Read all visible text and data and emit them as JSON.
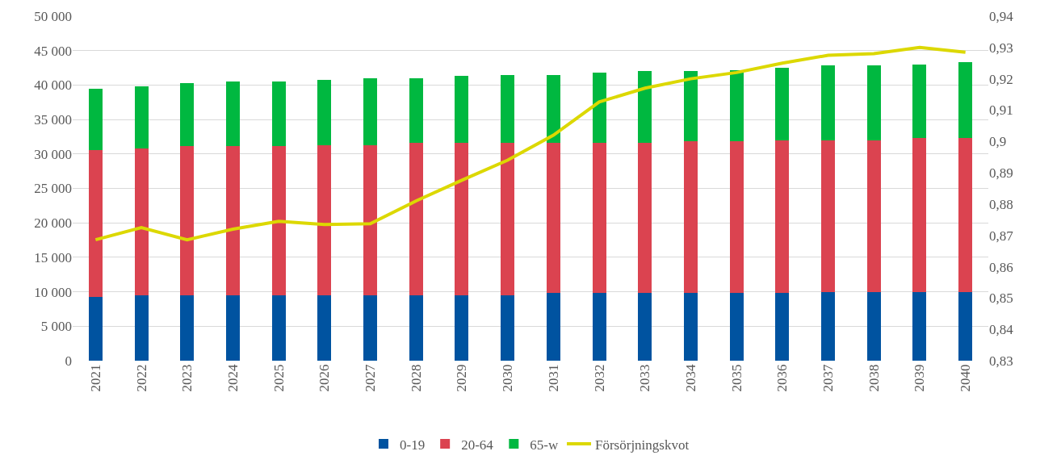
{
  "chart_data": {
    "type": "bar",
    "stacked": true,
    "categories": [
      "2021",
      "2022",
      "2023",
      "2024",
      "2025",
      "2026",
      "2027",
      "2028",
      "2029",
      "2030",
      "2031",
      "2032",
      "2033",
      "2034",
      "2035",
      "2036",
      "2037",
      "2038",
      "2039",
      "2040"
    ],
    "series": [
      {
        "name": "0-19",
        "color": "#0053a0",
        "values": [
          9200,
          9500,
          9500,
          9500,
          9500,
          9500,
          9500,
          9500,
          9500,
          9500,
          9800,
          9800,
          9800,
          9800,
          9800,
          9800,
          10000,
          10000,
          10000,
          10000
        ]
      },
      {
        "name": "20-64",
        "color": "#db4350",
        "values": [
          21400,
          21300,
          21600,
          21600,
          21600,
          21800,
          21800,
          22100,
          22100,
          22100,
          21800,
          21800,
          21800,
          22000,
          22000,
          22200,
          22000,
          22000,
          22300,
          22300
        ]
      },
      {
        "name": "65-w",
        "color": "#00b840",
        "values": [
          8900,
          9000,
          9200,
          9400,
          9400,
          9500,
          9700,
          9400,
          9700,
          9900,
          9900,
          10200,
          10400,
          10200,
          10400,
          10500,
          10800,
          10800,
          10700,
          11000
        ]
      },
      {
        "name": "Försörjningskvot",
        "type": "line",
        "axis": "y2",
        "color": "#dcd800",
        "values": [
          0.8686,
          0.8725,
          0.8686,
          0.872,
          0.8745,
          0.8735,
          0.8737,
          0.881,
          0.8876,
          0.894,
          0.902,
          0.9126,
          0.917,
          0.92,
          0.922,
          0.925,
          0.9275,
          0.928,
          0.93,
          0.9285
        ]
      }
    ],
    "ylim": [
      0,
      50000
    ],
    "yticks": [
      0,
      {
        "value": 5000,
        "label": "5 000"
      },
      {
        "value": 10000,
        "label": "10 000"
      },
      {
        "value": 15000,
        "label": "15 000"
      },
      {
        "value": 20000,
        "label": "20 000"
      },
      {
        "value": 25000,
        "label": "25 000"
      },
      {
        "value": 30000,
        "label": "30 000"
      },
      {
        "value": 35000,
        "label": "35 000"
      },
      {
        "value": 40000,
        "label": "40 000"
      },
      {
        "value": 45000,
        "label": "45 000"
      },
      {
        "value": 50000,
        "label": "50 000"
      }
    ],
    "y2lim": [
      0.83,
      0.94
    ],
    "y2ticks": [
      {
        "value": 0.83,
        "label": "0,83"
      },
      {
        "value": 0.84,
        "label": "0,84"
      },
      {
        "value": 0.85,
        "label": "0,85"
      },
      {
        "value": 0.86,
        "label": "0,86"
      },
      {
        "value": 0.87,
        "label": "0,87"
      },
      {
        "value": 0.88,
        "label": "0,88"
      },
      {
        "value": 0.89,
        "label": "0,89"
      },
      {
        "value": 0.9,
        "label": "0,9"
      },
      {
        "value": 0.91,
        "label": "0,91"
      },
      {
        "value": 0.92,
        "label": "0,92"
      },
      {
        "value": 0.93,
        "label": "0,93"
      },
      {
        "value": 0.94,
        "label": "0,94"
      }
    ],
    "grid": "y",
    "legend": "bottom",
    "marker": "none",
    "line_style": "solid"
  }
}
